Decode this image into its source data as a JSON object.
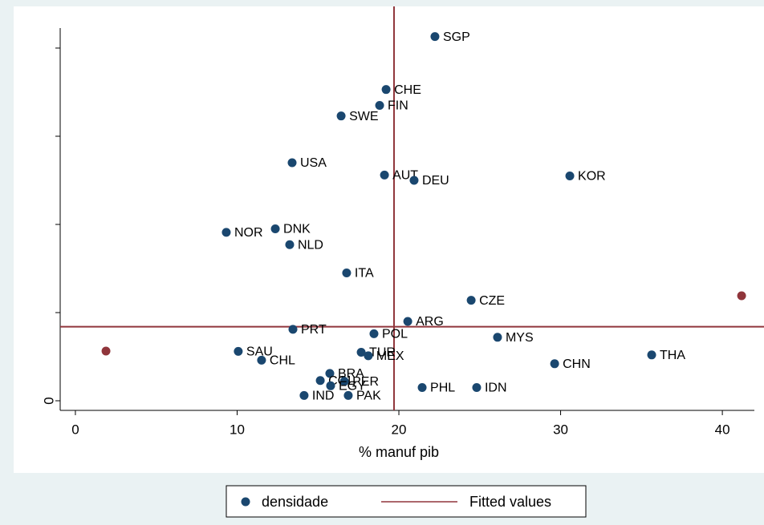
{
  "chart_data": {
    "type": "scatter",
    "x_label": "% manuf pib",
    "xlim": [
      -0.94,
      41.98
    ],
    "xticks": [
      0,
      10,
      20,
      30,
      40
    ],
    "ylim": [
      -0.109,
      4.227
    ],
    "yticks": [
      0,
      {
        "value": 1,
        "label": null
      },
      {
        "value": 2,
        "label": null
      },
      {
        "value": 3,
        "label": null
      },
      {
        "value": 4,
        "label": null
      }
    ],
    "xline": 19.7,
    "yline": 0.84,
    "series": [
      {
        "name": "densidade",
        "color": "#1a476f",
        "labels": [
          "SGP",
          "CHE",
          "FIN",
          "SWE",
          "USA",
          "AUT",
          "DEU",
          "KOR",
          "DNK",
          "NOR",
          "NLD",
          "ITA",
          "CZE",
          "ARG",
          "PRT",
          "POL",
          "MYS",
          "SAU",
          "TUR",
          "MEX",
          "CHL",
          "THA",
          "CHN",
          "BRA",
          "COL",
          "PER",
          "EGY",
          "PHL",
          "IDN",
          "IND",
          "PAK"
        ],
        "x": [
          22.23,
          19.21,
          18.81,
          16.43,
          13.4,
          19.11,
          20.94,
          30.57,
          12.36,
          9.33,
          13.25,
          16.77,
          24.47,
          20.55,
          13.45,
          18.46,
          26.1,
          10.07,
          17.67,
          18.11,
          11.51,
          35.63,
          29.63,
          15.73,
          15.14,
          16.63,
          15.78,
          21.44,
          24.81,
          14.14,
          16.87
        ],
        "values": [
          4.13,
          3.53,
          3.35,
          3.23,
          2.7,
          2.56,
          2.5,
          2.55,
          1.95,
          1.91,
          1.77,
          1.45,
          1.14,
          0.9,
          0.81,
          0.76,
          0.72,
          0.56,
          0.55,
          0.51,
          0.46,
          0.52,
          0.42,
          0.31,
          0.23,
          0.22,
          0.17,
          0.15,
          0.15,
          0.06,
          0.06
        ]
      },
      {
        "name": "Fitted values",
        "color": "#90353b",
        "x": [
          1.89,
          41.19
        ],
        "values": [
          0.564,
          1.191
        ]
      }
    ]
  }
}
